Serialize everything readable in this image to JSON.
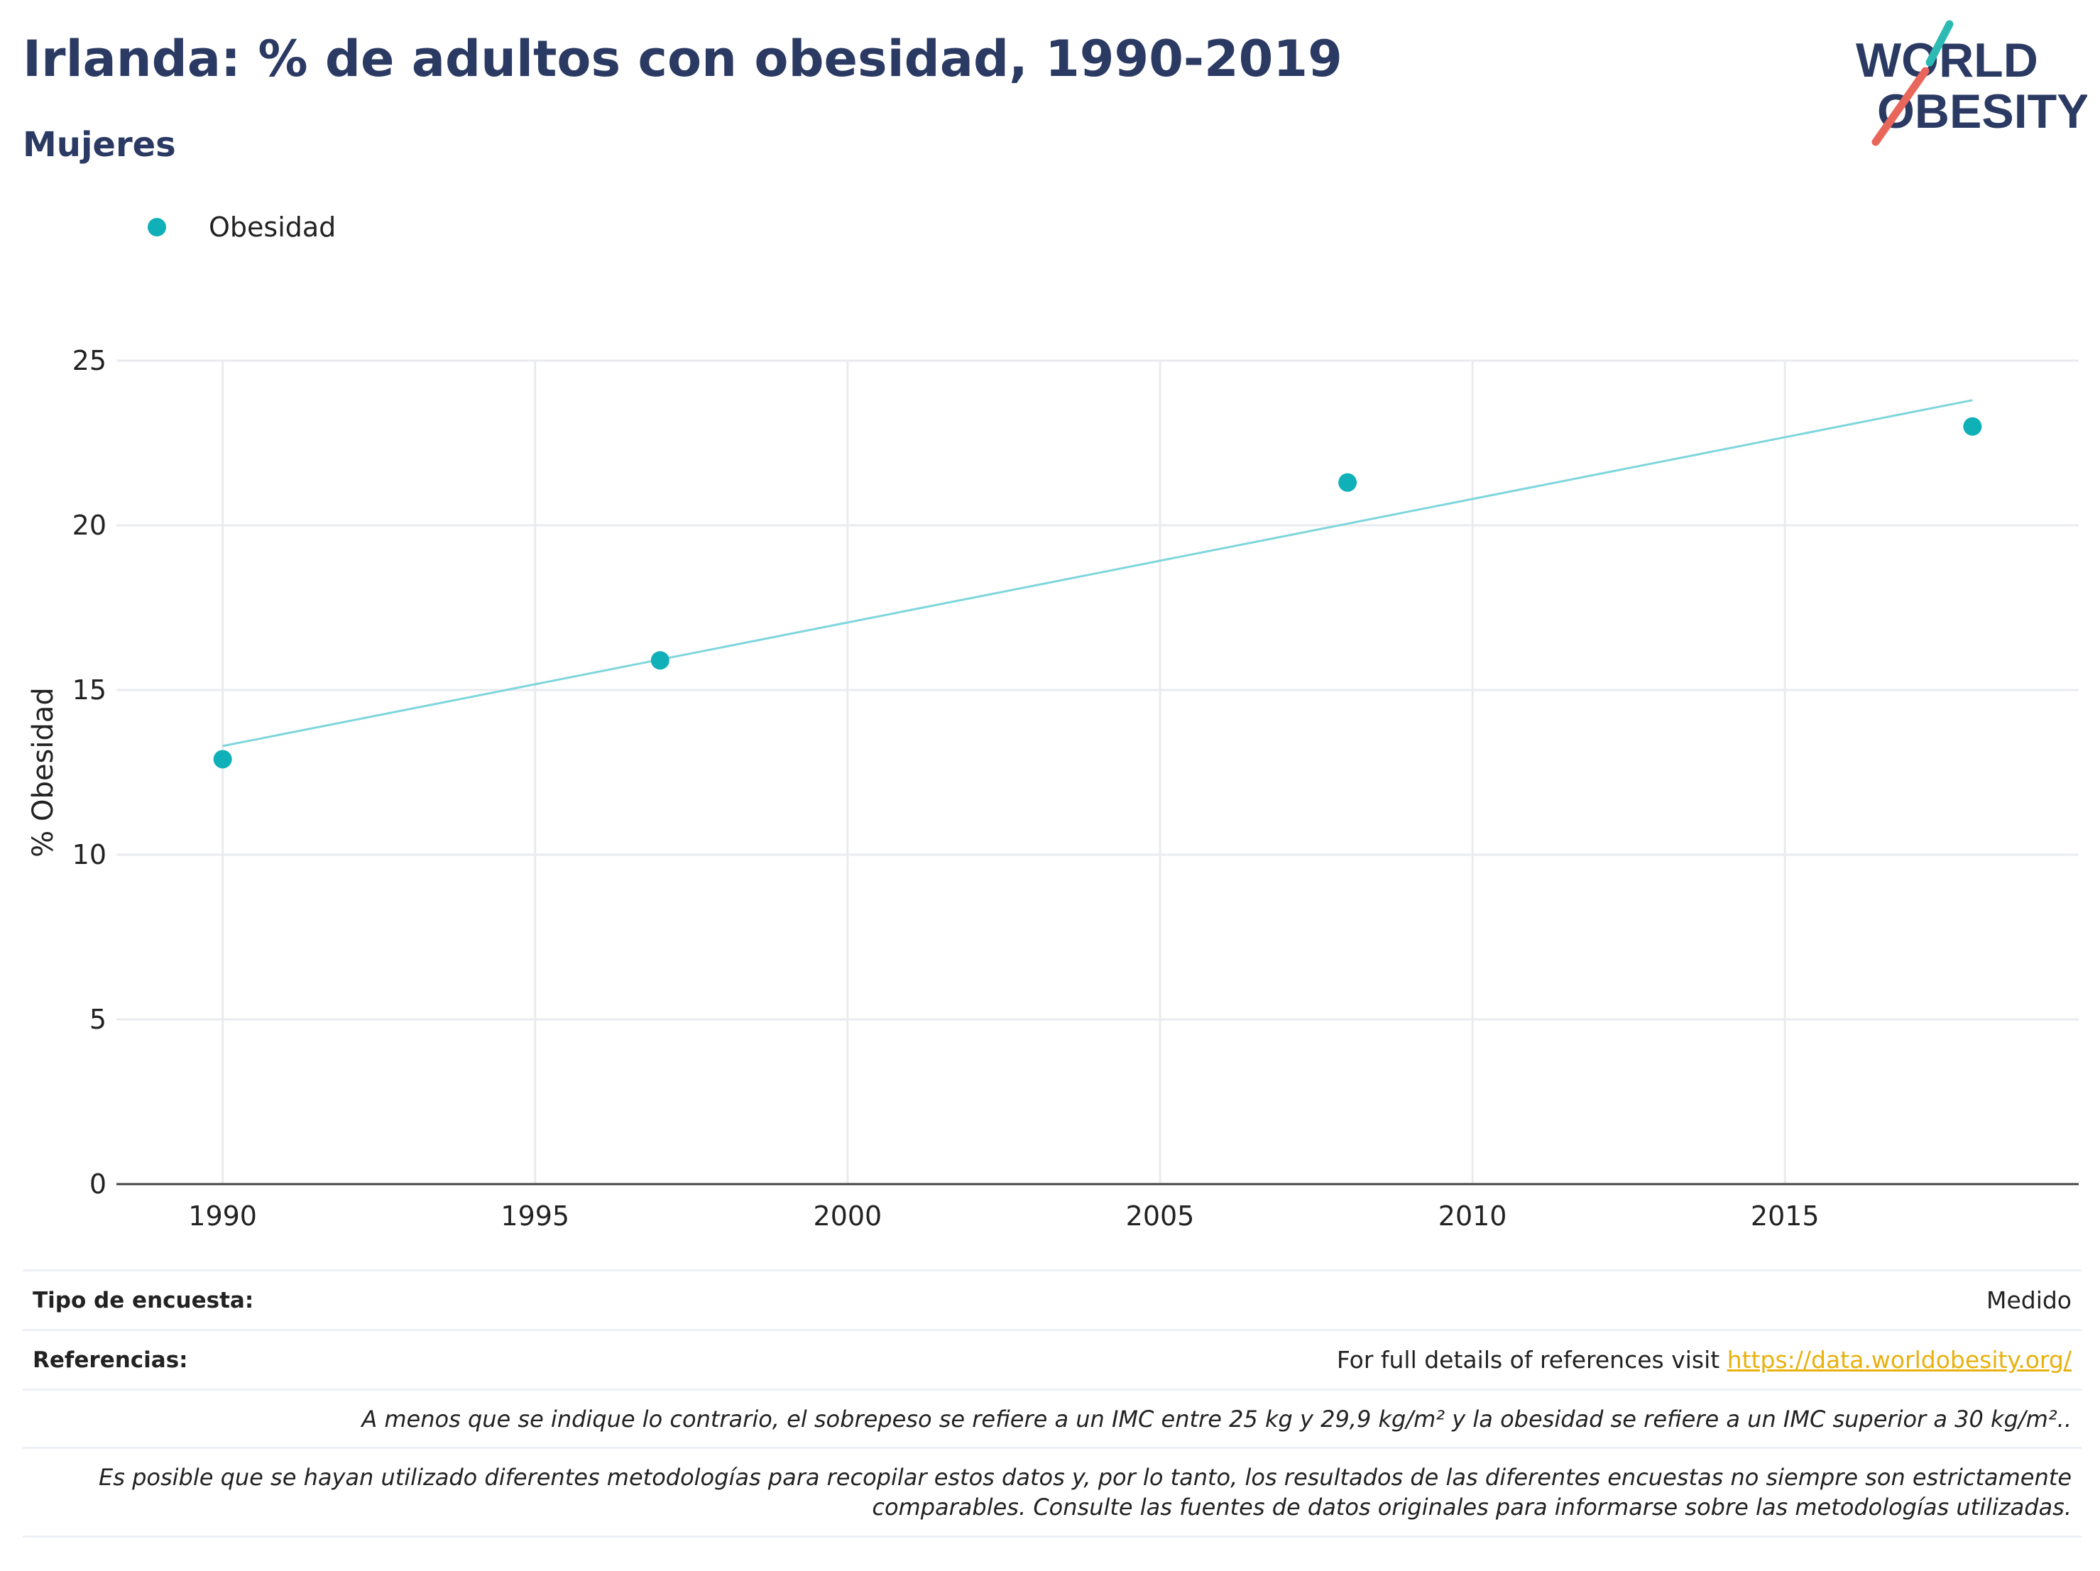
{
  "header": {
    "title": "Irlanda: % de adultos con obesidad, 1990-2019",
    "subtitle": "Mujeres"
  },
  "logo": {
    "line1": "WORLD",
    "line2": "OBESITY",
    "accent_teal": "#2bbab4",
    "accent_red": "#e8675a",
    "text_color": "#2b3a63"
  },
  "legend": {
    "label": "Obesidad",
    "placement": "top-left"
  },
  "chart_data": {
    "type": "scatter",
    "title": "Irlanda: % de adultos con obesidad, 1990-2019",
    "subtitle": "Mujeres",
    "xlabel": "",
    "ylabel": "% Obesidad",
    "xlim": [
      1988.3,
      2019.7
    ],
    "ylim": [
      0,
      25
    ],
    "x_ticks": [
      1990,
      1995,
      2000,
      2005,
      2010,
      2015
    ],
    "y_ticks": [
      0,
      5,
      10,
      15,
      20,
      25
    ],
    "grid": true,
    "series": [
      {
        "name": "Obesidad",
        "color": "#0fb0b8",
        "points": [
          {
            "x": 1990,
            "y": 12.9
          },
          {
            "x": 1997,
            "y": 15.9
          },
          {
            "x": 2008,
            "y": 21.3
          },
          {
            "x": 2018,
            "y": 23.0
          }
        ]
      }
    ],
    "trendline": {
      "color": "#7fd6dc",
      "start": {
        "x": 1990,
        "y": 13.3
      },
      "end": {
        "x": 2018,
        "y": 23.8
      }
    }
  },
  "footer": {
    "survey_type_label": "Tipo de encuesta:",
    "survey_type_value": "Medido",
    "references_label": "Referencias:",
    "references_text": "For full details of references visit ",
    "references_link": "https://data.worldobesity.org/",
    "note1": "A menos que se indique lo contrario, el sobrepeso se refiere a un IMC entre 25 kg y 29,9 kg/m² y la obesidad se refiere a un IMC superior a 30 kg/m²..",
    "note2": "Es posible que se hayan utilizado diferentes metodologías para recopilar estos datos y, por lo tanto, los resultados de las diferentes encuestas no siempre son estrictamente comparables. Consulte las fuentes de datos originales para informarse sobre las metodologías utilizadas."
  }
}
